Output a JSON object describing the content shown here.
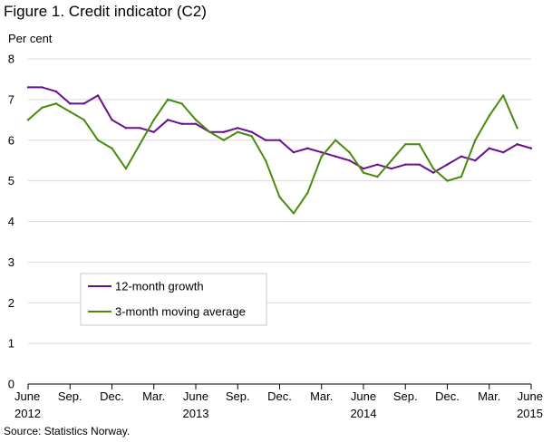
{
  "title": "Figure 1. Credit indicator (C2)",
  "unit_label": "Per cent",
  "source": "Source: Statistics Norway.",
  "chart_data": {
    "type": "line",
    "ylim": [
      0,
      8
    ],
    "yticks": [
      "0",
      "1",
      "2",
      "3",
      "4",
      "5",
      "6",
      "7",
      "8"
    ],
    "grid": "horizontal",
    "legend_position": "bottom-left inside plot",
    "x": [
      "Jun 2012",
      "Jul 2012",
      "Aug 2012",
      "Sep 2012",
      "Oct 2012",
      "Nov 2012",
      "Dec 2012",
      "Jan 2013",
      "Feb 2013",
      "Mar 2013",
      "Apr 2013",
      "May 2013",
      "Jun 2013",
      "Jul 2013",
      "Aug 2013",
      "Sep 2013",
      "Oct 2013",
      "Nov 2013",
      "Dec 2013",
      "Jan 2014",
      "Feb 2014",
      "Mar 2014",
      "Apr 2014",
      "May 2014",
      "Jun 2014",
      "Jul 2014",
      "Aug 2014",
      "Sep 2014",
      "Oct 2014",
      "Nov 2014",
      "Dec 2014",
      "Jan 2015",
      "Feb 2015",
      "Mar 2015",
      "Apr 2015",
      "May 2015",
      "Jun 2015"
    ],
    "x_tick_labels": [
      {
        "month": "June",
        "year": "2012"
      },
      {
        "month": "Sep.",
        "year": ""
      },
      {
        "month": "Dec.",
        "year": ""
      },
      {
        "month": "Mar.",
        "year": ""
      },
      {
        "month": "June",
        "year": "2013"
      },
      {
        "month": "Sep.",
        "year": ""
      },
      {
        "month": "Dec.",
        "year": ""
      },
      {
        "month": "Mar.",
        "year": ""
      },
      {
        "month": "June",
        "year": "2014"
      },
      {
        "month": "Sep.",
        "year": ""
      },
      {
        "month": "Dec.",
        "year": ""
      },
      {
        "month": "Mar.",
        "year": ""
      },
      {
        "month": "June",
        "year": "2015"
      }
    ],
    "series": [
      {
        "name": "12-month growth",
        "color": "#6a0f8e",
        "values": [
          7.3,
          7.3,
          7.2,
          6.9,
          6.9,
          7.1,
          6.5,
          6.3,
          6.3,
          6.2,
          6.5,
          6.4,
          6.4,
          6.2,
          6.2,
          6.3,
          6.2,
          6.0,
          6.0,
          5.7,
          5.8,
          5.7,
          5.6,
          5.5,
          5.3,
          5.4,
          5.3,
          5.4,
          5.4,
          5.2,
          5.4,
          5.6,
          5.5,
          5.8,
          5.7,
          5.9,
          5.8
        ]
      },
      {
        "name": "3-month moving average",
        "color": "#4a8b0f",
        "values": [
          6.5,
          6.8,
          6.9,
          6.7,
          6.5,
          6.0,
          5.8,
          5.3,
          5.9,
          6.5,
          7.0,
          6.9,
          6.5,
          6.2,
          6.0,
          6.2,
          6.1,
          5.5,
          4.6,
          4.2,
          4.7,
          5.6,
          6.0,
          5.7,
          5.2,
          5.1,
          5.5,
          5.9,
          5.9,
          5.3,
          5.0,
          5.1,
          6.0,
          6.6,
          7.1,
          6.3,
          null
        ]
      }
    ]
  }
}
